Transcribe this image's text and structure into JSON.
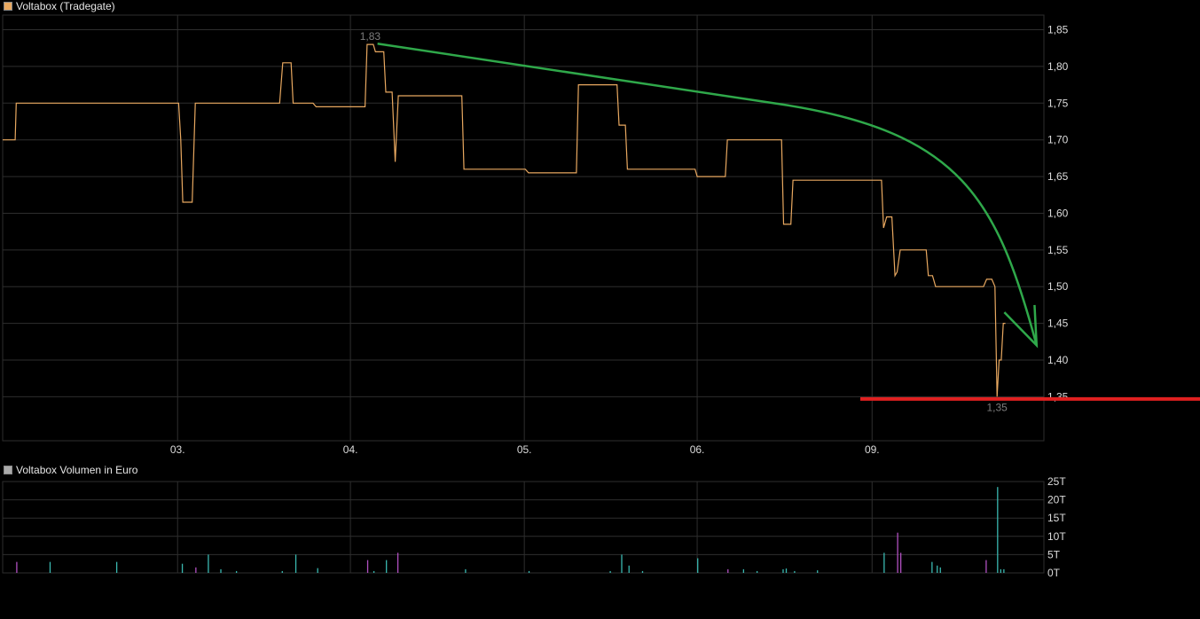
{
  "chart_data": [
    {
      "type": "line",
      "title": "Voltabox (Tradegate)",
      "ylim": [
        1.29,
        1.87
      ],
      "yticks": [
        1.85,
        1.8,
        1.75,
        1.7,
        1.65,
        1.6,
        1.55,
        1.5,
        1.45,
        1.4,
        1.35
      ],
      "ytick_labels": [
        "1,85",
        "1,80",
        "1,75",
        "1,70",
        "1,65",
        "1,60",
        "1,55",
        "1,50",
        "1,45",
        "1,40",
        "1,35"
      ],
      "xticks": [
        "03.",
        "04.",
        "05.",
        "06.",
        "09."
      ],
      "grid": true,
      "colors": {
        "line": "#e8a860",
        "annotation_high_low": "#7d7d7d",
        "trend_arrow": "#2fa84a",
        "support_line": "#e02020",
        "grid": "#2e2e2e"
      },
      "series": [
        {
          "name": "Voltabox",
          "points": [
            [
              0.0,
              1.7
            ],
            [
              0.012,
              1.7
            ],
            [
              0.013,
              1.75
            ],
            [
              0.169,
              1.75
            ],
            [
              0.171,
              1.7
            ],
            [
              0.173,
              1.615
            ],
            [
              0.182,
              1.615
            ],
            [
              0.185,
              1.75
            ],
            [
              0.266,
              1.75
            ],
            [
              0.269,
              1.805
            ],
            [
              0.277,
              1.805
            ],
            [
              0.279,
              1.75
            ],
            [
              0.298,
              1.75
            ],
            [
              0.301,
              1.745
            ],
            [
              0.348,
              1.745
            ],
            [
              0.35,
              1.83
            ],
            [
              0.356,
              1.83
            ],
            [
              0.358,
              1.82
            ],
            [
              0.366,
              1.82
            ],
            [
              0.368,
              1.765
            ],
            [
              0.374,
              1.765
            ],
            [
              0.377,
              1.67
            ],
            [
              0.38,
              1.76
            ],
            [
              0.441,
              1.76
            ],
            [
              0.443,
              1.66
            ],
            [
              0.502,
              1.66
            ],
            [
              0.505,
              1.655
            ],
            [
              0.551,
              1.655
            ],
            [
              0.553,
              1.775
            ],
            [
              0.59,
              1.775
            ],
            [
              0.592,
              1.72
            ],
            [
              0.598,
              1.72
            ],
            [
              0.6,
              1.66
            ],
            [
              0.665,
              1.66
            ],
            [
              0.667,
              1.65
            ],
            [
              0.694,
              1.65
            ],
            [
              0.696,
              1.7
            ],
            [
              0.748,
              1.7
            ],
            [
              0.75,
              1.585
            ],
            [
              0.757,
              1.585
            ],
            [
              0.759,
              1.645
            ],
            [
              0.844,
              1.645
            ],
            [
              0.846,
              1.58
            ],
            [
              0.849,
              1.595
            ],
            [
              0.854,
              1.595
            ],
            [
              0.857,
              1.515
            ],
            [
              0.859,
              1.52
            ],
            [
              0.862,
              1.55
            ],
            [
              0.887,
              1.55
            ],
            [
              0.889,
              1.515
            ],
            [
              0.893,
              1.515
            ],
            [
              0.896,
              1.5
            ],
            [
              0.942,
              1.5
            ],
            [
              0.945,
              1.51
            ],
            [
              0.95,
              1.51
            ],
            [
              0.953,
              1.5
            ],
            [
              0.955,
              1.35
            ],
            [
              0.957,
              1.4
            ],
            [
              0.959,
              1.4
            ],
            [
              0.961,
              1.45
            ],
            [
              0.963,
              1.45
            ]
          ]
        }
      ],
      "annotations": {
        "high": "1,83",
        "low": "1,35"
      }
    },
    {
      "type": "bar",
      "title": "Voltabox Volumen in Euro",
      "ylim": [
        0,
        25
      ],
      "yticks": [
        0,
        5,
        10,
        15,
        20,
        25
      ],
      "ytick_labels": [
        "0T",
        "5T",
        "10T",
        "15T",
        "20T",
        "25T"
      ],
      "unit": "T",
      "colors": {
        "up": "#3ab8b0",
        "down": "#b050c0"
      },
      "bars": [
        {
          "x": 0.013,
          "v": 3.0,
          "c": "down"
        },
        {
          "x": 0.045,
          "v": 3.0,
          "c": "up"
        },
        {
          "x": 0.109,
          "v": 3.0,
          "c": "up"
        },
        {
          "x": 0.172,
          "v": 2.5,
          "c": "up"
        },
        {
          "x": 0.185,
          "v": 1.5,
          "c": "down"
        },
        {
          "x": 0.197,
          "v": 5.0,
          "c": "up"
        },
        {
          "x": 0.209,
          "v": 1.0,
          "c": "up"
        },
        {
          "x": 0.224,
          "v": 0.5,
          "c": "up"
        },
        {
          "x": 0.268,
          "v": 0.5,
          "c": "up"
        },
        {
          "x": 0.281,
          "v": 5.0,
          "c": "up"
        },
        {
          "x": 0.302,
          "v": 1.3,
          "c": "up"
        },
        {
          "x": 0.35,
          "v": 3.5,
          "c": "down"
        },
        {
          "x": 0.356,
          "v": 0.5,
          "c": "up"
        },
        {
          "x": 0.368,
          "v": 3.5,
          "c": "up"
        },
        {
          "x": 0.379,
          "v": 5.5,
          "c": "down"
        },
        {
          "x": 0.444,
          "v": 1.0,
          "c": "up"
        },
        {
          "x": 0.505,
          "v": 0.5,
          "c": "up"
        },
        {
          "x": 0.583,
          "v": 0.5,
          "c": "up"
        },
        {
          "x": 0.594,
          "v": 5.0,
          "c": "up"
        },
        {
          "x": 0.601,
          "v": 2.0,
          "c": "up"
        },
        {
          "x": 0.614,
          "v": 0.5,
          "c": "up"
        },
        {
          "x": 0.667,
          "v": 4.0,
          "c": "up"
        },
        {
          "x": 0.696,
          "v": 1.0,
          "c": "down"
        },
        {
          "x": 0.711,
          "v": 1.0,
          "c": "up"
        },
        {
          "x": 0.724,
          "v": 0.5,
          "c": "up"
        },
        {
          "x": 0.749,
          "v": 1.0,
          "c": "up"
        },
        {
          "x": 0.752,
          "v": 1.2,
          "c": "up"
        },
        {
          "x": 0.76,
          "v": 0.5,
          "c": "up"
        },
        {
          "x": 0.782,
          "v": 0.7,
          "c": "up"
        },
        {
          "x": 0.846,
          "v": 5.5,
          "c": "up"
        },
        {
          "x": 0.859,
          "v": 11.0,
          "c": "down"
        },
        {
          "x": 0.862,
          "v": 5.5,
          "c": "down"
        },
        {
          "x": 0.892,
          "v": 3.0,
          "c": "up"
        },
        {
          "x": 0.897,
          "v": 2.0,
          "c": "up"
        },
        {
          "x": 0.9,
          "v": 1.5,
          "c": "up"
        },
        {
          "x": 0.944,
          "v": 3.5,
          "c": "down"
        },
        {
          "x": 0.955,
          "v": 23.5,
          "c": "up"
        },
        {
          "x": 0.958,
          "v": 1.0,
          "c": "up"
        },
        {
          "x": 0.961,
          "v": 1.0,
          "c": "up"
        }
      ]
    }
  ],
  "legend": {
    "price_label": "Voltabox (Tradegate)",
    "price_swatch": "#e8a860",
    "volume_label": "Voltabox Volumen in Euro",
    "volume_swatch": "#aaaaaa"
  }
}
